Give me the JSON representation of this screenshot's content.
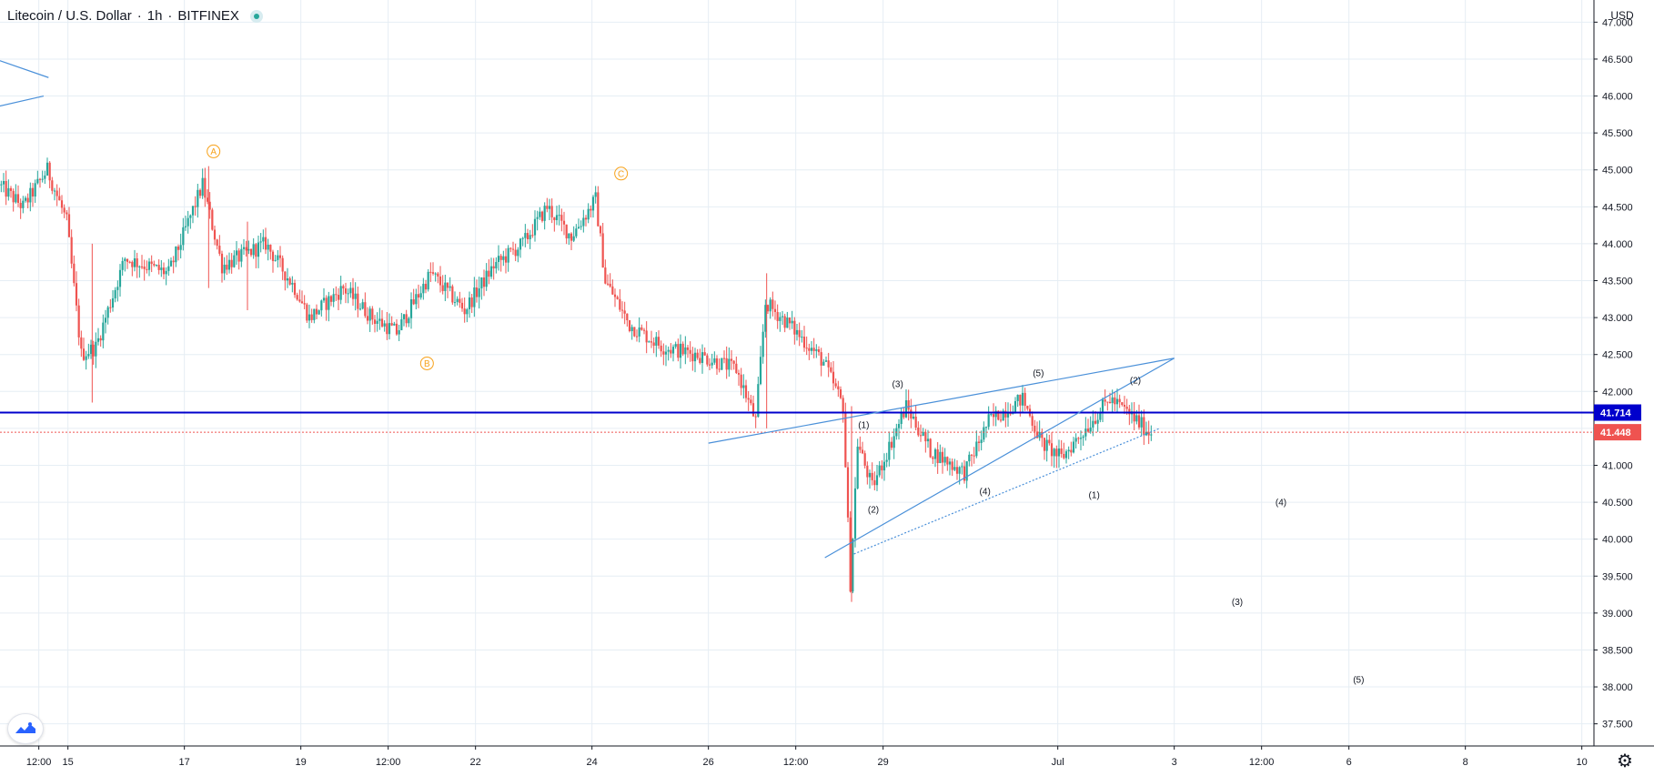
{
  "header": {
    "symbol": "Litecoin / U.S. Dollar",
    "interval": "1h",
    "exchange": "BITFINEX",
    "separator": "·"
  },
  "price_scale": {
    "currency": "USD",
    "level_tag": "41.714",
    "last_price_tag": "41.448",
    "level_color": "#0000cc",
    "last_price_color": "#ef5350"
  },
  "icons": {
    "logo": "tradingview-logo-icon",
    "settings": "gear-icon",
    "live": "live-status-icon"
  },
  "colors": {
    "up": "#26a69a",
    "down": "#ef5350",
    "trendline": "#4a90d9",
    "wave_abc": "#f7a21b",
    "grid": "#e6eef4",
    "axis_text": "#131722"
  },
  "chart_data": {
    "type": "candlestick",
    "title": "Litecoin / U.S. Dollar · 1h · BITFINEX",
    "y_range": [
      37.2,
      47.3
    ],
    "y_ticks": [
      "47.000",
      "46.500",
      "46.000",
      "45.500",
      "45.000",
      "44.500",
      "44.000",
      "43.500",
      "43.000",
      "42.500",
      "42.000",
      "41.500",
      "41.000",
      "40.500",
      "40.000",
      "39.500",
      "39.000",
      "38.500",
      "38.000",
      "37.500"
    ],
    "x_range": [
      "Jul 13 20:00",
      "Aug 10 05:00"
    ],
    "x_ticks": [
      {
        "label": "12:00",
        "t": "Jul 14 12:00"
      },
      {
        "label": "15",
        "t": "Jul 15 00:00"
      },
      {
        "label": "17",
        "t": "Jul 17 00:00"
      },
      {
        "label": "19",
        "t": "Jul 19 00:00"
      },
      {
        "label": "12:00",
        "t": "Jul 20 12:00"
      },
      {
        "label": "22",
        "t": "Jul 22 00:00"
      },
      {
        "label": "24",
        "t": "Jul 24 00:00"
      },
      {
        "label": "26",
        "t": "Jul 26 00:00"
      },
      {
        "label": "12:00",
        "t": "Jul 27 12:00"
      },
      {
        "label": "29",
        "t": "Jul 29 00:00"
      },
      {
        "label": "Jul",
        "t": "Aug 01 00:00"
      },
      {
        "label": "3",
        "t": "Aug 03 00:00"
      },
      {
        "label": "12:00",
        "t": "Aug 04 12:00"
      },
      {
        "label": "6",
        "t": "Aug 06 00:00"
      },
      {
        "label": "8",
        "t": "Aug 08 00:00"
      },
      {
        "label": "10",
        "t": "Aug 10 00:00"
      }
    ],
    "price_path": [
      [
        "Jul 13 20:00",
        44.8
      ],
      [
        "Jul 14 06:00",
        44.5
      ],
      [
        "Jul 14 16:00",
        45.0
      ],
      [
        "Jul 15 00:00",
        44.3
      ],
      [
        "Jul 15 06:00",
        42.5
      ],
      [
        "Jul 15 12:00",
        42.6
      ],
      [
        "Jul 16 00:00",
        43.8
      ],
      [
        "Jul 16 18:00",
        43.6
      ],
      [
        "Jul 17 08:00",
        44.8
      ],
      [
        "Jul 17 16:00",
        43.7
      ],
      [
        "Jul 18 10:00",
        44.0
      ],
      [
        "Jul 18 22:00",
        43.4
      ],
      [
        "Jul 19 04:00",
        43.0
      ],
      [
        "Jul 19 18:00",
        43.4
      ],
      [
        "Jul 20 06:00",
        43.0
      ],
      [
        "Jul 20 16:00",
        42.8
      ],
      [
        "Jul 21 06:00",
        43.6
      ],
      [
        "Jul 21 20:00",
        43.1
      ],
      [
        "Jul 22 08:00",
        43.7
      ],
      [
        "Jul 22 20:00",
        44.0
      ],
      [
        "Jul 23 06:00",
        44.5
      ],
      [
        "Jul 23 16:00",
        44.1
      ],
      [
        "Jul 24 02:00",
        44.6
      ],
      [
        "Jul 24 06:00",
        43.5
      ],
      [
        "Jul 24 16:00",
        42.9
      ],
      [
        "Jul 25 06:00",
        42.6
      ],
      [
        "Jul 25 20:00",
        42.5
      ],
      [
        "Jul 26 12:00",
        42.3
      ],
      [
        "Jul 26 20:00",
        41.6
      ],
      [
        "Jul 27 00:00",
        43.2
      ],
      [
        "Jul 27 10:00",
        42.9
      ],
      [
        "Jul 28 00:00",
        42.4
      ],
      [
        "Jul 28 08:00",
        41.8
      ],
      [
        "Jul 28 11:00",
        39.4
      ],
      [
        "Jul 28 14:00",
        41.3
      ],
      [
        "Jul 28 20:00",
        40.7
      ],
      [
        "Jul 29 10:00",
        41.8
      ],
      [
        "Jul 29 20:00",
        41.2
      ],
      [
        "Jul 30 10:00",
        40.9
      ],
      [
        "Jul 30 20:00",
        41.6
      ],
      [
        "Jul 31 10:00",
        41.9
      ],
      [
        "Jul 31 18:00",
        41.3
      ],
      [
        "Aug 01 02:00",
        41.1
      ],
      [
        "Aug 01 12:00",
        41.5
      ],
      [
        "Aug 01 22:00",
        41.9
      ],
      [
        "Aug 02 06:00",
        41.7
      ],
      [
        "Aug 02 14:00",
        41.45
      ]
    ],
    "horizontal_levels": [
      {
        "value": 41.714,
        "style": "solid",
        "color": "#0000cc"
      },
      {
        "value": 41.448,
        "style": "dotted",
        "color": "#ef5350"
      }
    ],
    "trendlines": [
      {
        "from": [
          "Jul 13 18:00",
          46.5
        ],
        "to": [
          "Jul 14 16:00",
          46.25
        ]
      },
      {
        "from": [
          "Jul 13 18:00",
          45.85
        ],
        "to": [
          "Jul 14 14:00",
          46.0
        ]
      },
      {
        "from": [
          "Jul 26 00:00",
          41.3
        ],
        "to": [
          "Aug 03 00:00",
          42.45
        ]
      },
      {
        "from": [
          "Jul 28 00:00",
          39.75
        ],
        "to": [
          "Aug 03 00:00",
          42.45
        ]
      },
      {
        "from": [
          "Jul 28 12:00",
          39.8
        ],
        "to": [
          "Aug 02 18:00",
          41.5
        ],
        "style": "dotted"
      }
    ],
    "annotations": [
      {
        "text": "A",
        "t": "Jul 17 12:00",
        "price": 45.25,
        "style": "circled",
        "color": "#f7a21b"
      },
      {
        "text": "B",
        "t": "Jul 21 04:00",
        "price": 42.38,
        "style": "circled",
        "color": "#f7a21b"
      },
      {
        "text": "C",
        "t": "Jul 24 12:00",
        "price": 44.95,
        "style": "circled",
        "color": "#f7a21b"
      },
      {
        "text": "(1)",
        "t": "Jul 28 16:00",
        "price": 41.55,
        "style": "plain"
      },
      {
        "text": "(2)",
        "t": "Jul 28 20:00",
        "price": 40.4,
        "style": "plain"
      },
      {
        "text": "(3)",
        "t": "Jul 29 06:00",
        "price": 42.1,
        "style": "plain"
      },
      {
        "text": "(4)",
        "t": "Jul 30 18:00",
        "price": 40.65,
        "style": "plain"
      },
      {
        "text": "(5)",
        "t": "Jul 31 16:00",
        "price": 42.25,
        "style": "plain"
      },
      {
        "text": "(1)",
        "t": "Aug 01 15:00",
        "price": 40.6,
        "style": "plain"
      },
      {
        "text": "(2)",
        "t": "Aug 02 08:00",
        "price": 42.15,
        "style": "plain"
      },
      {
        "text": "(3)",
        "t": "Aug 04 02:00",
        "price": 39.15,
        "style": "plain"
      },
      {
        "text": "(4)",
        "t": "Aug 04 20:00",
        "price": 40.5,
        "style": "plain"
      },
      {
        "text": "(5)",
        "t": "Aug 06 04:00",
        "price": 38.1,
        "style": "plain"
      }
    ]
  }
}
